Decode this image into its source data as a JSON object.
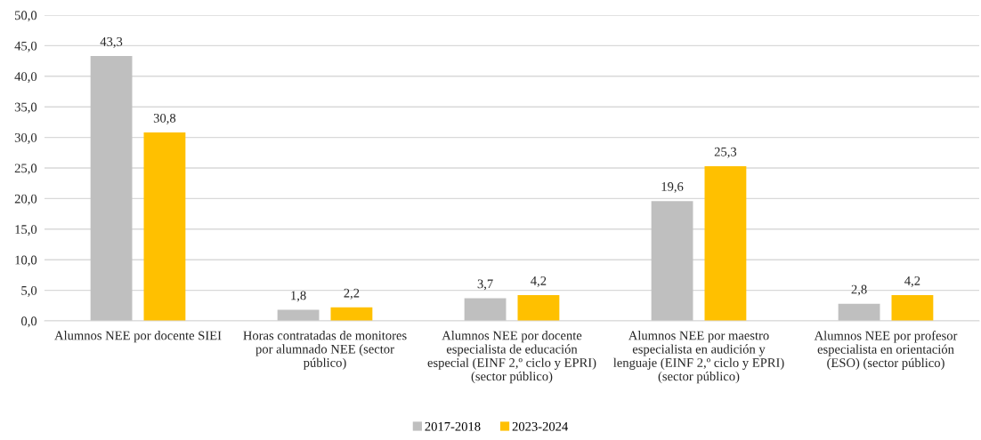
{
  "chart_data": {
    "type": "bar",
    "categories": [
      "Alumnos NEE por docente SIEI",
      "Horas contratadas de monitores\npor alumnado NEE (sector\npúblico)",
      "Alumnos NEE por docente\nespecialista de educación\nespecial (EINF 2,º ciclo y EPRI)\n(sector público)",
      "Alumnos NEE por maestro\nespecialista en audición y\nlenguaje (EINF 2,º ciclo y EPRI)\n(sector público)",
      "Alumnos NEE por profesor\nespecialista en orientación\n(ESO) (sector público)"
    ],
    "series": [
      {
        "name": "2017-2018",
        "color": "#bfbfbf",
        "values": [
          43.3,
          1.8,
          3.7,
          19.6,
          2.8
        ],
        "value_labels": [
          "43,3",
          "1,8",
          "3,7",
          "19,6",
          "2,8"
        ]
      },
      {
        "name": "2023-2024",
        "color": "#ffc000",
        "values": [
          30.8,
          2.2,
          4.2,
          25.3,
          4.2
        ],
        "value_labels": [
          "30,8",
          "2,2",
          "4,2",
          "25,3",
          "4,2"
        ]
      }
    ],
    "ylim": [
      0,
      50
    ],
    "yticks": [
      {
        "value": 0,
        "label": "0,0"
      },
      {
        "value": 5,
        "label": "5,0"
      },
      {
        "value": 10,
        "label": "10,0"
      },
      {
        "value": 15,
        "label": "15,0"
      },
      {
        "value": 20,
        "label": "20,0"
      },
      {
        "value": 25,
        "label": "25,0"
      },
      {
        "value": 30,
        "label": "30,0"
      },
      {
        "value": 35,
        "label": "35,0"
      },
      {
        "value": 40,
        "label": "40,0"
      },
      {
        "value": 45,
        "label": "45,0"
      },
      {
        "value": 50,
        "label": "50,0"
      }
    ],
    "grid": "y",
    "legend": "bottom"
  }
}
